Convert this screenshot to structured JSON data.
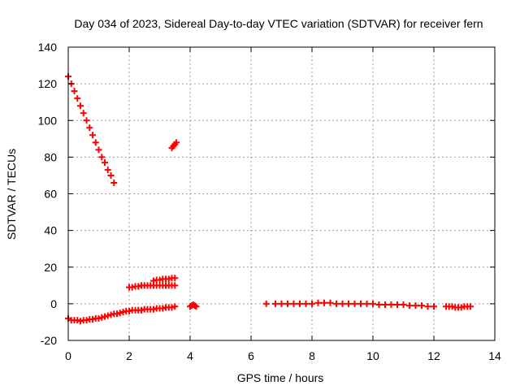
{
  "chart_data": {
    "type": "scatter",
    "title": "Day 034 of 2023, Sidereal Day-to-day VTEC variation (SDTVAR) for receiver fern",
    "xlabel": "GPS time / hours",
    "ylabel": "SDTVAR / TECUs",
    "xlim": [
      0,
      14
    ],
    "ylim": [
      -20,
      140
    ],
    "xticks": [
      "0",
      "2",
      "4",
      "6",
      "8",
      "10",
      "12",
      "14"
    ],
    "yticks": [
      "-20",
      "0",
      "20",
      "40",
      "60",
      "80",
      "100",
      "120",
      "140"
    ],
    "grid": true,
    "marker_color": "#ff0000",
    "marker": "plus",
    "series": [
      {
        "x": [
          0.0,
          0.1,
          0.2,
          0.3,
          0.4,
          0.5,
          0.6,
          0.7,
          0.8,
          0.9,
          1.0,
          1.1,
          1.2,
          1.3,
          1.4,
          1.5
        ],
        "y": [
          124,
          120,
          116,
          112,
          108,
          104,
          100,
          96,
          92,
          88,
          84,
          80,
          77,
          73,
          70,
          66
        ]
      },
      {
        "x": [
          3.4,
          3.45,
          3.5,
          3.55
        ],
        "y": [
          85,
          86,
          87,
          88
        ]
      },
      {
        "x": [
          0.0,
          0.1,
          0.2,
          0.3,
          0.4,
          0.5,
          0.6,
          0.7,
          0.8,
          0.9,
          1.0,
          1.1,
          1.2,
          1.3,
          1.4,
          1.5,
          1.6,
          1.7,
          1.8,
          1.9,
          2.0,
          2.1,
          2.2,
          2.3,
          2.4,
          2.5,
          2.6,
          2.7,
          2.8,
          2.9,
          3.0,
          3.1,
          3.2,
          3.3,
          3.4,
          3.5
        ],
        "y": [
          -8,
          -9,
          -9,
          -9,
          -9.5,
          -9,
          -9,
          -8.5,
          -8.5,
          -8,
          -8,
          -7.5,
          -7,
          -6.5,
          -6,
          -5.5,
          -5.5,
          -5,
          -4.5,
          -4,
          -4,
          -3.5,
          -3.5,
          -3.5,
          -3.5,
          -3,
          -3,
          -3,
          -3,
          -2.5,
          -2.5,
          -2.5,
          -2,
          -2,
          -2,
          -1.5
        ]
      },
      {
        "x": [
          2.0,
          2.1,
          2.2,
          2.3,
          2.4,
          2.5,
          2.6,
          2.7,
          2.8,
          2.9,
          3.0,
          3.1,
          3.2,
          3.3,
          3.4,
          3.5
        ],
        "y": [
          9,
          9,
          9.5,
          9.5,
          10,
          10,
          10,
          10,
          10,
          10,
          10,
          10,
          10,
          10,
          10,
          10
        ]
      },
      {
        "x": [
          2.8,
          2.9,
          3.0,
          3.1,
          3.2,
          3.3,
          3.4,
          3.5
        ],
        "y": [
          12.5,
          13,
          13,
          13.5,
          13.5,
          13.5,
          14,
          14
        ]
      },
      {
        "x": [
          4.0,
          4.05,
          4.1,
          4.15,
          4.2
        ],
        "y": [
          -1.5,
          -1,
          -0.5,
          -1,
          -1.5
        ]
      },
      {
        "x": [
          6.5
        ],
        "y": [
          0
        ]
      },
      {
        "x": [
          6.8,
          7.0,
          7.2,
          7.4,
          7.6,
          7.8,
          8.0,
          8.2,
          8.4,
          8.6,
          8.8,
          9.0,
          9.2,
          9.4,
          9.6,
          9.8,
          10.0,
          10.2,
          10.4,
          10.6,
          10.8,
          11.0,
          11.2,
          11.4,
          11.6,
          11.8,
          12.0
        ],
        "y": [
          0,
          0,
          0,
          0,
          0,
          0,
          0,
          0.5,
          0.5,
          0.5,
          0,
          0,
          0,
          0,
          0,
          0,
          0,
          -0.5,
          -0.5,
          -0.5,
          -0.5,
          -0.5,
          -1,
          -1,
          -1,
          -1.5,
          -1.5
        ]
      },
      {
        "x": [
          12.4,
          12.5,
          12.6,
          12.7,
          12.8,
          12.9,
          13.0,
          13.1,
          13.2
        ],
        "y": [
          -1.5,
          -1.5,
          -1.5,
          -2,
          -2,
          -2,
          -1.5,
          -1.5,
          -1.5
        ]
      }
    ]
  }
}
